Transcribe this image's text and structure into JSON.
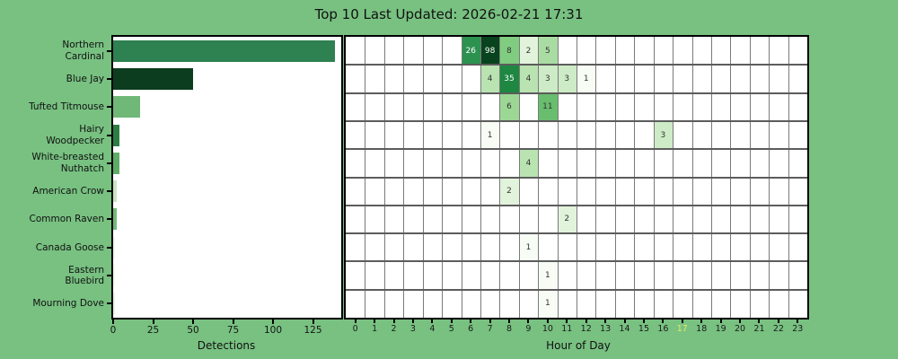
{
  "title": "Top 10 Last Updated: 2026-02-21 17:31",
  "colors": {
    "background": "#78c181",
    "plot_background": "#ffffff",
    "border": "#000000",
    "grid_vertical": "#7a7a7a",
    "grid_horizontal": "#5c5c5c",
    "text": "#111111",
    "cell_text_dark": "#333333",
    "cell_text_light": "#ffffff",
    "highlight_hour_color": "#e3ec5f"
  },
  "chart_data": {
    "type": [
      "bar",
      "heatmap"
    ],
    "title": "Top 10 Last Updated: 2026-02-21 17:31",
    "species": [
      "Northern Cardinal",
      "Blue Jay",
      "Tufted Titmouse",
      "Hairy Woodpecker",
      "White-breasted Nuthatch",
      "American Crow",
      "Common Raven",
      "Canada Goose",
      "Eastern Bluebird",
      "Mourning Dove"
    ],
    "species_label_lines": [
      [
        "Northern",
        "Cardinal"
      ],
      [
        "Blue Jay"
      ],
      [
        "Tufted Titmouse"
      ],
      [
        "Hairy",
        "Woodpecker"
      ],
      [
        "White-breasted",
        "Nuthatch"
      ],
      [
        "American Crow"
      ],
      [
        "Common Raven"
      ],
      [
        "Canada Goose"
      ],
      [
        "Eastern",
        "Bluebird"
      ],
      [
        "Mourning Dove"
      ]
    ],
    "bar": {
      "type": "bar",
      "orientation": "horizontal",
      "xlabel": "Detections",
      "xticks": [
        0,
        25,
        50,
        75,
        100,
        125
      ],
      "xlim": [
        0,
        143
      ],
      "values": [
        139,
        50,
        17,
        4,
        4,
        2,
        2,
        1,
        1,
        1
      ],
      "bar_colors": [
        "#2e8150",
        "#0b3d1e",
        "#6fb877",
        "#2c7e45",
        "#5ead67",
        "#c9e5c2",
        "#74ba7b",
        "#eff8ec",
        "#f2faef",
        "#e8f5e3"
      ]
    },
    "heatmap": {
      "type": "heatmap",
      "xlabel": "Hour of Day",
      "hours": [
        0,
        1,
        2,
        3,
        4,
        5,
        6,
        7,
        8,
        9,
        10,
        11,
        12,
        13,
        14,
        15,
        16,
        17,
        18,
        19,
        20,
        21,
        22,
        23
      ],
      "current_hour": 17,
      "cells": [
        {
          "species": "Northern Cardinal",
          "hour": 6,
          "value": 26
        },
        {
          "species": "Northern Cardinal",
          "hour": 7,
          "value": 98
        },
        {
          "species": "Northern Cardinal",
          "hour": 8,
          "value": 8
        },
        {
          "species": "Northern Cardinal",
          "hour": 9,
          "value": 2
        },
        {
          "species": "Northern Cardinal",
          "hour": 10,
          "value": 5
        },
        {
          "species": "Blue Jay",
          "hour": 7,
          "value": 4
        },
        {
          "species": "Blue Jay",
          "hour": 8,
          "value": 35
        },
        {
          "species": "Blue Jay",
          "hour": 9,
          "value": 4
        },
        {
          "species": "Blue Jay",
          "hour": 10,
          "value": 3
        },
        {
          "species": "Blue Jay",
          "hour": 11,
          "value": 3
        },
        {
          "species": "Blue Jay",
          "hour": 12,
          "value": 1
        },
        {
          "species": "Tufted Titmouse",
          "hour": 8,
          "value": 6
        },
        {
          "species": "Tufted Titmouse",
          "hour": 10,
          "value": 11
        },
        {
          "species": "Hairy Woodpecker",
          "hour": 7,
          "value": 1
        },
        {
          "species": "Hairy Woodpecker",
          "hour": 16,
          "value": 3
        },
        {
          "species": "White-breasted Nuthatch",
          "hour": 9,
          "value": 4
        },
        {
          "species": "American Crow",
          "hour": 8,
          "value": 2
        },
        {
          "species": "Common Raven",
          "hour": 11,
          "value": 2
        },
        {
          "species": "Canada Goose",
          "hour": 9,
          "value": 1
        },
        {
          "species": "Eastern Bluebird",
          "hour": 10,
          "value": 1
        },
        {
          "species": "Mourning Dove",
          "hour": 10,
          "value": 1
        }
      ],
      "value_colors": {
        "1": "#f7fcf5",
        "2": "#e2f3dc",
        "3": "#cdebc6",
        "4": "#b9e3b1",
        "5": "#a9dca2",
        "6": "#9cd795",
        "8": "#80cc80",
        "11": "#68bd6e",
        "26": "#2d9150",
        "35": "#1e8742",
        "98": "#07431d"
      },
      "white_text_values": [
        26,
        35,
        98
      ]
    }
  }
}
